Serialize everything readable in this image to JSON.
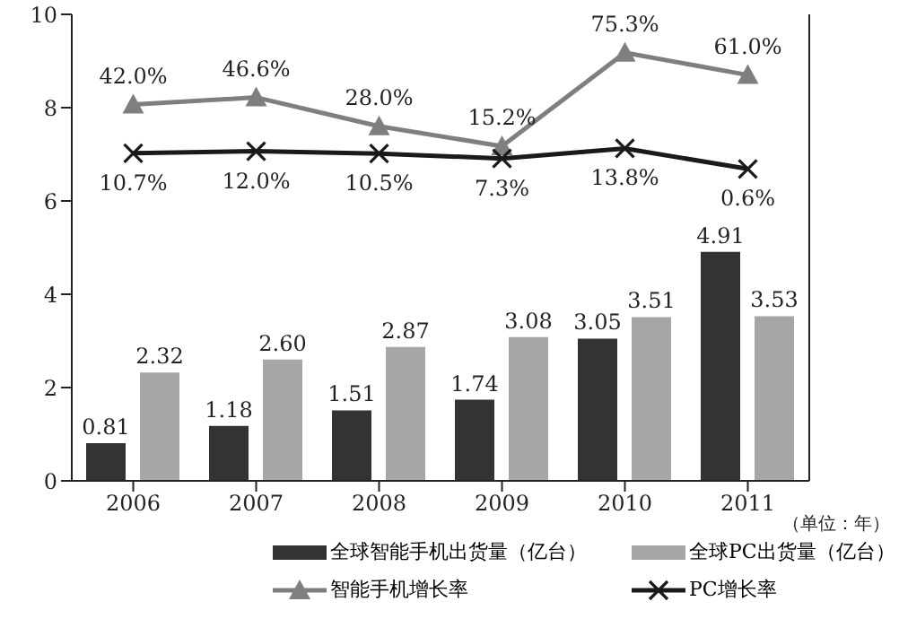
{
  "chart_data": {
    "type": "bar",
    "categories": [
      "2006",
      "2007",
      "2008",
      "2009",
      "2010",
      "2011"
    ],
    "series": [
      {
        "name": "全球智能手机出货量（亿台）",
        "color": "#333333",
        "values": [
          0.81,
          1.18,
          1.51,
          1.74,
          3.05,
          4.91
        ],
        "value_labels": [
          "0.81",
          "1.18",
          "1.51",
          "1.74",
          "3.05",
          "4.91"
        ]
      },
      {
        "name": "全球PC出货量（亿台）",
        "color": "#a6a6a6",
        "values": [
          2.32,
          2.6,
          2.87,
          3.08,
          3.51,
          3.53
        ],
        "value_labels": [
          "2.32",
          "2.60",
          "2.87",
          "3.08",
          "3.51",
          "3.53"
        ]
      },
      {
        "name": "智能手机增长率",
        "type": "line",
        "axis": "y2",
        "marker": "triangle",
        "color": "#7f7f7f",
        "values": [
          42.0,
          46.6,
          28.0,
          15.2,
          75.3,
          61.0
        ],
        "value_labels": [
          "42.0%",
          "46.6%",
          "28.0%",
          "15.2%",
          "75.3%",
          "61.0%"
        ]
      },
      {
        "name": "PC增长率",
        "type": "line",
        "axis": "y2",
        "marker": "cross",
        "color": "#1a1a1a",
        "values": [
          10.7,
          12.0,
          10.5,
          7.3,
          13.8,
          0.6
        ],
        "value_labels": [
          "10.7%",
          "12.0%",
          "10.5%",
          "7.3%",
          "13.8%",
          "0.6%"
        ]
      }
    ],
    "ylim": [
      0,
      10
    ],
    "yticks": [
      0,
      2,
      4,
      6,
      8,
      10
    ],
    "y2lim": [
      -200,
      100
    ],
    "tick_labels": "xy",
    "legend": "bottom",
    "line_style": "solid",
    "annotations": [
      "（单位：年）"
    ]
  }
}
